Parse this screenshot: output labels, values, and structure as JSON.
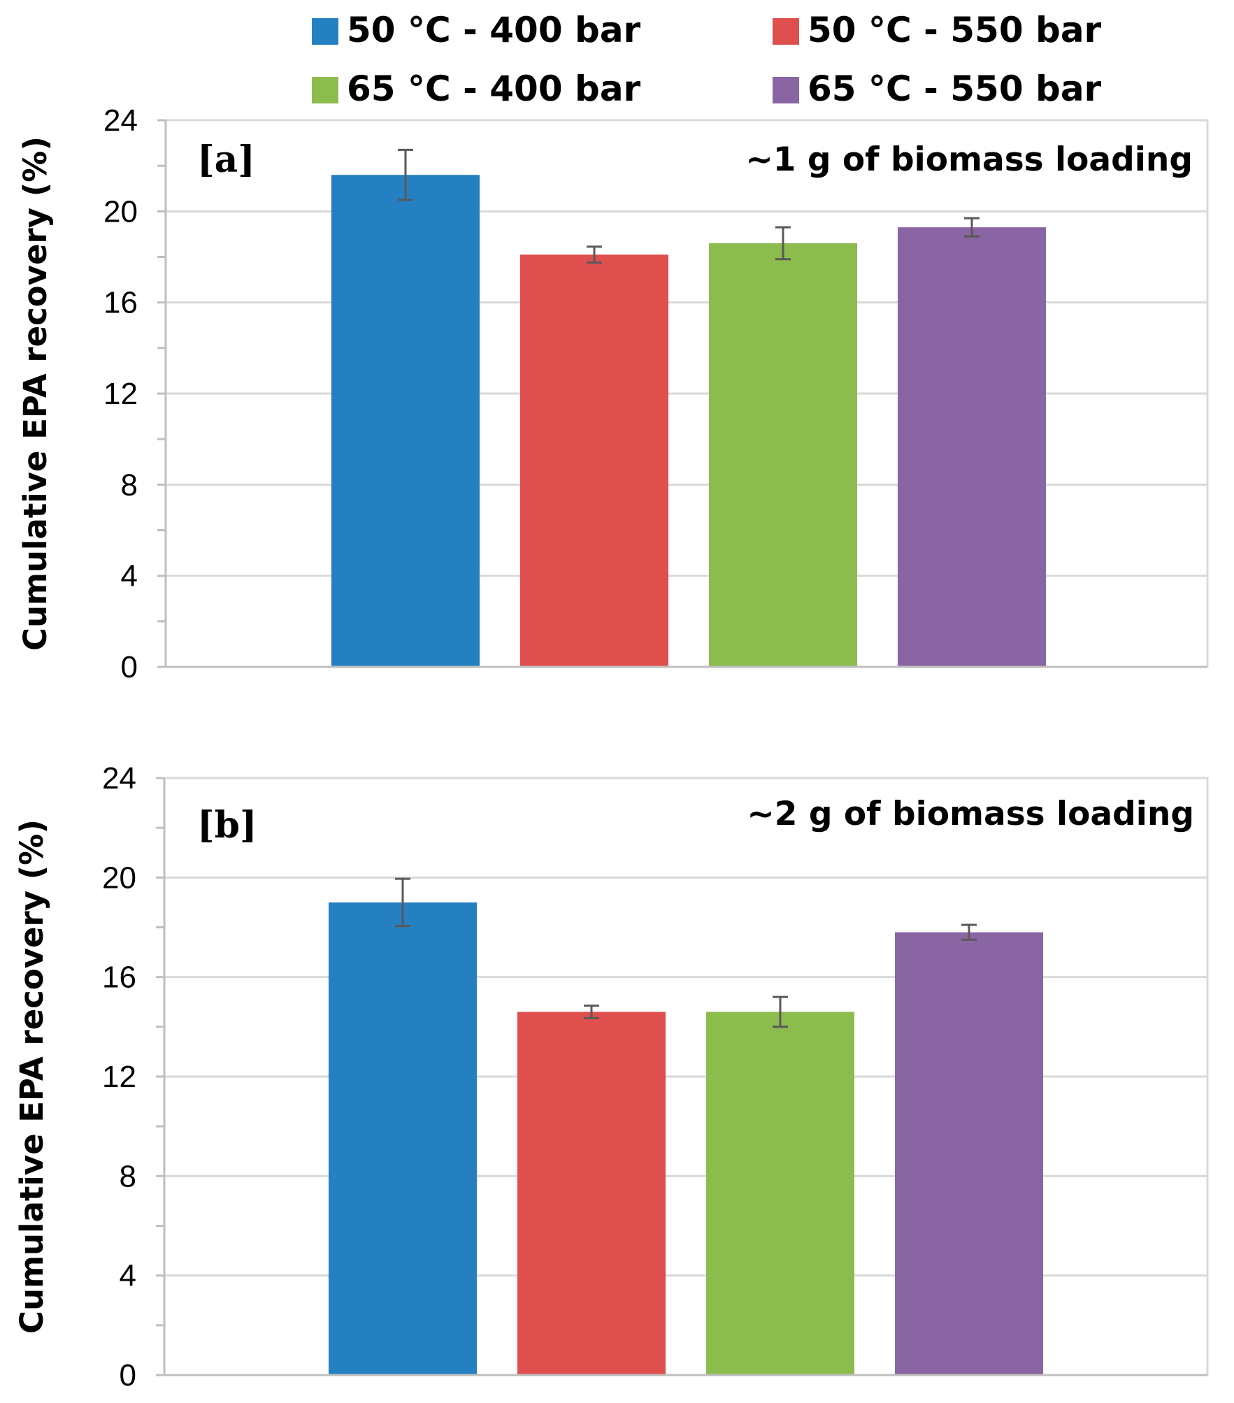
{
  "chart_data": {
    "type": "bar",
    "legend": {
      "position": "top",
      "entries": [
        {
          "label": "50 °C - 400 bar",
          "color": "#2580C2"
        },
        {
          "label": "50 °C - 550 bar",
          "color": "#DE4F4E"
        },
        {
          "label": "65 °C - 400 bar",
          "color": "#8DBC4E"
        },
        {
          "label": "65 °C - 550 bar",
          "color": "#8A65A4"
        }
      ]
    },
    "panels": [
      {
        "panel_label": "[a]",
        "annotation": "~1 g of biomass loading",
        "ylabel": "Cumulative EPA recovery (%)",
        "ylim": [
          0,
          24
        ],
        "yticks": [
          "0",
          "4",
          "8",
          "12",
          "16",
          "20",
          "24"
        ],
        "grid": true,
        "series": [
          {
            "name": "50 °C - 400 bar",
            "value": 21.6,
            "error": 1.1
          },
          {
            "name": "50 °C - 550 bar",
            "value": 18.1,
            "error": 0.35
          },
          {
            "name": "65 °C - 400 bar",
            "value": 18.6,
            "error": 0.7
          },
          {
            "name": "65 °C - 550 bar",
            "value": 19.3,
            "error": 0.4
          }
        ]
      },
      {
        "panel_label": "[b]",
        "annotation": "~2 g of biomass loading",
        "ylabel": "Cumulative EPA recovery (%)",
        "ylim": [
          0,
          24
        ],
        "yticks": [
          "0",
          "4",
          "8",
          "12",
          "16",
          "20",
          "24"
        ],
        "grid": true,
        "series": [
          {
            "name": "50 °C - 400 bar",
            "value": 19.0,
            "error": 0.95
          },
          {
            "name": "50 °C - 550 bar",
            "value": 14.6,
            "error": 0.25
          },
          {
            "name": "65 °C - 400 bar",
            "value": 14.6,
            "error": 0.6
          },
          {
            "name": "65 °C - 550 bar",
            "value": 17.8,
            "error": 0.3
          }
        ]
      }
    ]
  }
}
